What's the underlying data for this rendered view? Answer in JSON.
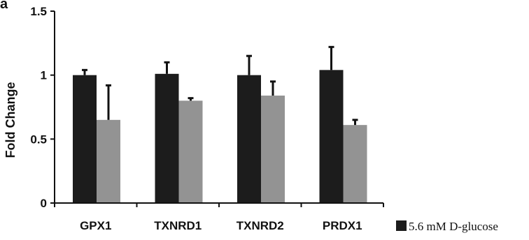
{
  "chart_data": {
    "type": "bar",
    "panel_label": "a",
    "ylabel": "Fold Change",
    "xlabel": "",
    "ylim": [
      0,
      1.5
    ],
    "yticks": [
      0,
      0.5,
      1,
      1.5
    ],
    "ytick_labels": [
      "0",
      "0.5",
      "1",
      "1.5"
    ],
    "categories": [
      "GPX1",
      "TXNRD1",
      "TXNRD2",
      "PRDX1"
    ],
    "series": [
      {
        "name": "5.6 mM D-glucose",
        "color": "#1c1c1c",
        "values": [
          1.0,
          1.01,
          1.0,
          1.04
        ],
        "errors": [
          0.04,
          0.09,
          0.15,
          0.18
        ]
      },
      {
        "color": "#939393",
        "values": [
          0.65,
          0.8,
          0.84,
          0.61
        ],
        "errors": [
          0.27,
          0.02,
          0.11,
          0.04
        ]
      }
    ],
    "legend": {
      "position": "bottom-right",
      "entries": [
        "5.6 mM D-glucose"
      ]
    }
  }
}
